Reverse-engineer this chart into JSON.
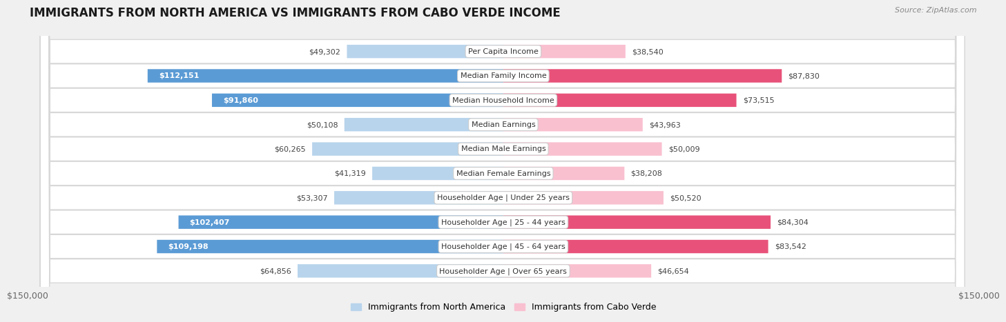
{
  "title": "IMMIGRANTS FROM NORTH AMERICA VS IMMIGRANTS FROM CABO VERDE INCOME",
  "source": "Source: ZipAtlas.com",
  "categories": [
    "Per Capita Income",
    "Median Family Income",
    "Median Household Income",
    "Median Earnings",
    "Median Male Earnings",
    "Median Female Earnings",
    "Householder Age | Under 25 years",
    "Householder Age | 25 - 44 years",
    "Householder Age | 45 - 64 years",
    "Householder Age | Over 65 years"
  ],
  "north_america_values": [
    49302,
    112151,
    91860,
    50108,
    60265,
    41319,
    53307,
    102407,
    109198,
    64856
  ],
  "cabo_verde_values": [
    38540,
    87830,
    73515,
    43963,
    50009,
    38208,
    50520,
    84304,
    83542,
    46654
  ],
  "north_america_labels": [
    "$49,302",
    "$112,151",
    "$91,860",
    "$50,108",
    "$60,265",
    "$41,319",
    "$53,307",
    "$102,407",
    "$109,198",
    "$64,856"
  ],
  "cabo_verde_labels": [
    "$38,540",
    "$87,830",
    "$73,515",
    "$43,963",
    "$50,009",
    "$38,208",
    "$50,520",
    "$84,304",
    "$83,542",
    "$46,654"
  ],
  "north_america_color_light": "#b8d4ec",
  "north_america_color_dark": "#5b9bd5",
  "cabo_verde_color_light": "#f9c0d0",
  "cabo_verde_color_dark": "#e8527a",
  "dark_threshold": 70000,
  "max_value": 150000,
  "x_tick_labels": [
    "$150,000",
    "$150,000"
  ],
  "legend_na": "Immigrants from North America",
  "legend_cv": "Immigrants from Cabo Verde",
  "bg_color": "#f0f0f0",
  "row_bg_color": "#ffffff",
  "row_border_color": "#d8d8d8",
  "title_fontsize": 12,
  "label_fontsize": 8,
  "value_fontsize": 8,
  "bar_height": 0.55
}
